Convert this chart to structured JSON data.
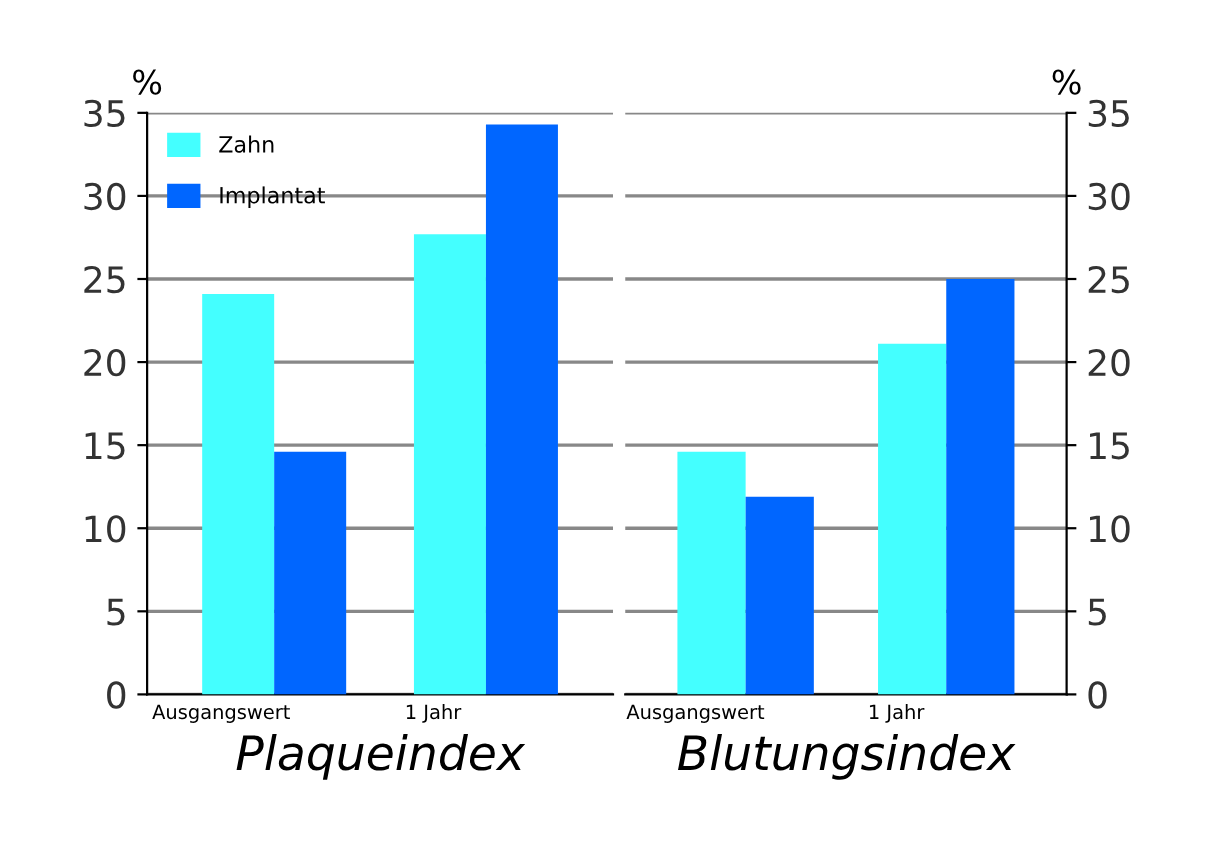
{
  "chart_data": [
    {
      "type": "bar",
      "xlabel": "Plaqueindex",
      "ylabel": "%",
      "categories": [
        "Ausgangswert",
        "1 Jahr"
      ],
      "series": [
        {
          "name": "Zahn",
          "color": "#44ffff",
          "values": [
            24.1,
            27.7
          ]
        },
        {
          "name": "Implantat",
          "color": "#0066ff",
          "values": [
            14.6,
            34.3
          ]
        }
      ],
      "ylim": [
        0,
        35
      ],
      "yticks": [
        0,
        5,
        10,
        15,
        20,
        25,
        30,
        35
      ],
      "grid": "y",
      "legend": "top left"
    },
    {
      "type": "bar",
      "xlabel": "Blutungsindex",
      "y2label": "%",
      "categories": [
        "Ausgangswert",
        "1 Jahr"
      ],
      "series": [
        {
          "color": "#44ffff",
          "values": [
            14.6,
            21.1
          ],
          "axis": "y2"
        },
        {
          "color": "#0066ff",
          "values": [
            11.9,
            25.0
          ],
          "axis": "y2"
        }
      ],
      "y2lim": [
        0,
        35
      ],
      "y2ticks": [
        0,
        5,
        10,
        15,
        20,
        25,
        30,
        35
      ],
      "grid": "y",
      "legend": false
    }
  ]
}
